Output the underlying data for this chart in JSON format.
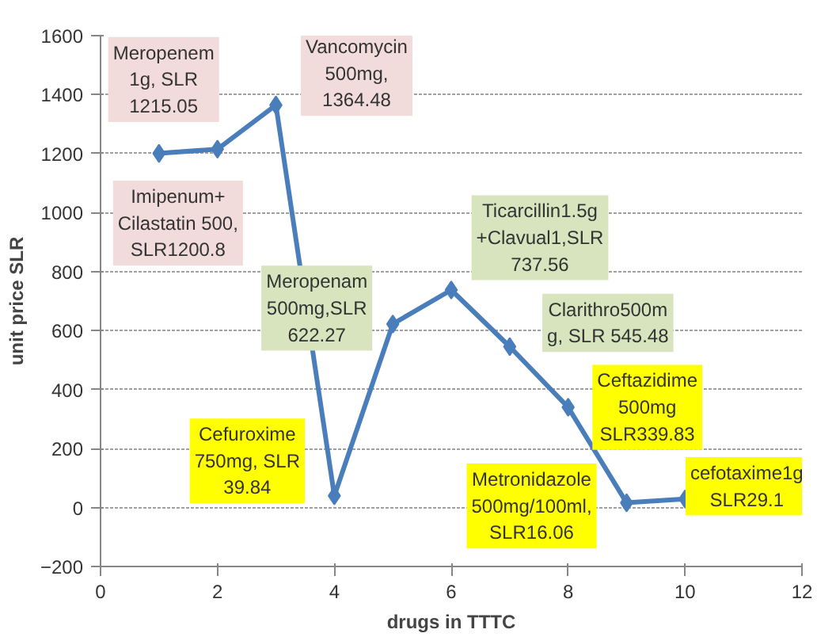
{
  "chart_data": {
    "type": "line",
    "xlabel": "drugs in TTTC",
    "ylabel": "unit price SLR",
    "x": [
      1,
      2,
      3,
      4,
      5,
      6,
      7,
      8,
      9,
      10
    ],
    "series": [
      {
        "color": "#4a7ebb",
        "values": [
          1200.8,
          1215.05,
          1364.48,
          39.84,
          622.27,
          737.56,
          545.48,
          339.83,
          16.06,
          29.1
        ]
      }
    ],
    "xlim": [
      0,
      12
    ],
    "ylim": [
      -200,
      1600
    ],
    "xticks": [
      0,
      2,
      4,
      6,
      8,
      10,
      12
    ],
    "yticks": [
      -200,
      0,
      200,
      400,
      600,
      800,
      1000,
      1200,
      1400,
      1600
    ],
    "grid": "y",
    "marker": "diamond",
    "annotations": [
      {
        "text": "Imipenum+\nCilastatin 500,\nSLR1200.8",
        "x": 1,
        "y": 1200.8
      },
      {
        "text": "Meropenem\n1g, SLR\n1215.05",
        "x": 2,
        "y": 1215.05
      },
      {
        "text": "Vancomycin\n500mg,\n1364.48",
        "x": 3,
        "y": 1364.48
      },
      {
        "text": "Cefuroxime\n750mg, SLR\n39.84",
        "x": 4,
        "y": 39.84
      },
      {
        "text": "Meropenam\n500mg,SLR\n622.27",
        "x": 5,
        "y": 622.27
      },
      {
        "text": "Ticarcillin1.5g\n+Clavual1,SLR\n737.56",
        "x": 6,
        "y": 737.56
      },
      {
        "text": "Clarithro500m\ng, SLR 545.48",
        "x": 7,
        "y": 545.48
      },
      {
        "text": "Ceftazidime\n500mg\nSLR339.83",
        "x": 8,
        "y": 339.83
      },
      {
        "text": "Metronidazole\n500mg/100ml,\nSLR16.06",
        "x": 9,
        "y": 16.06
      },
      {
        "text": "cefotaxime1g\nSLR29.1",
        "x": 10,
        "y": 29.1
      }
    ]
  }
}
